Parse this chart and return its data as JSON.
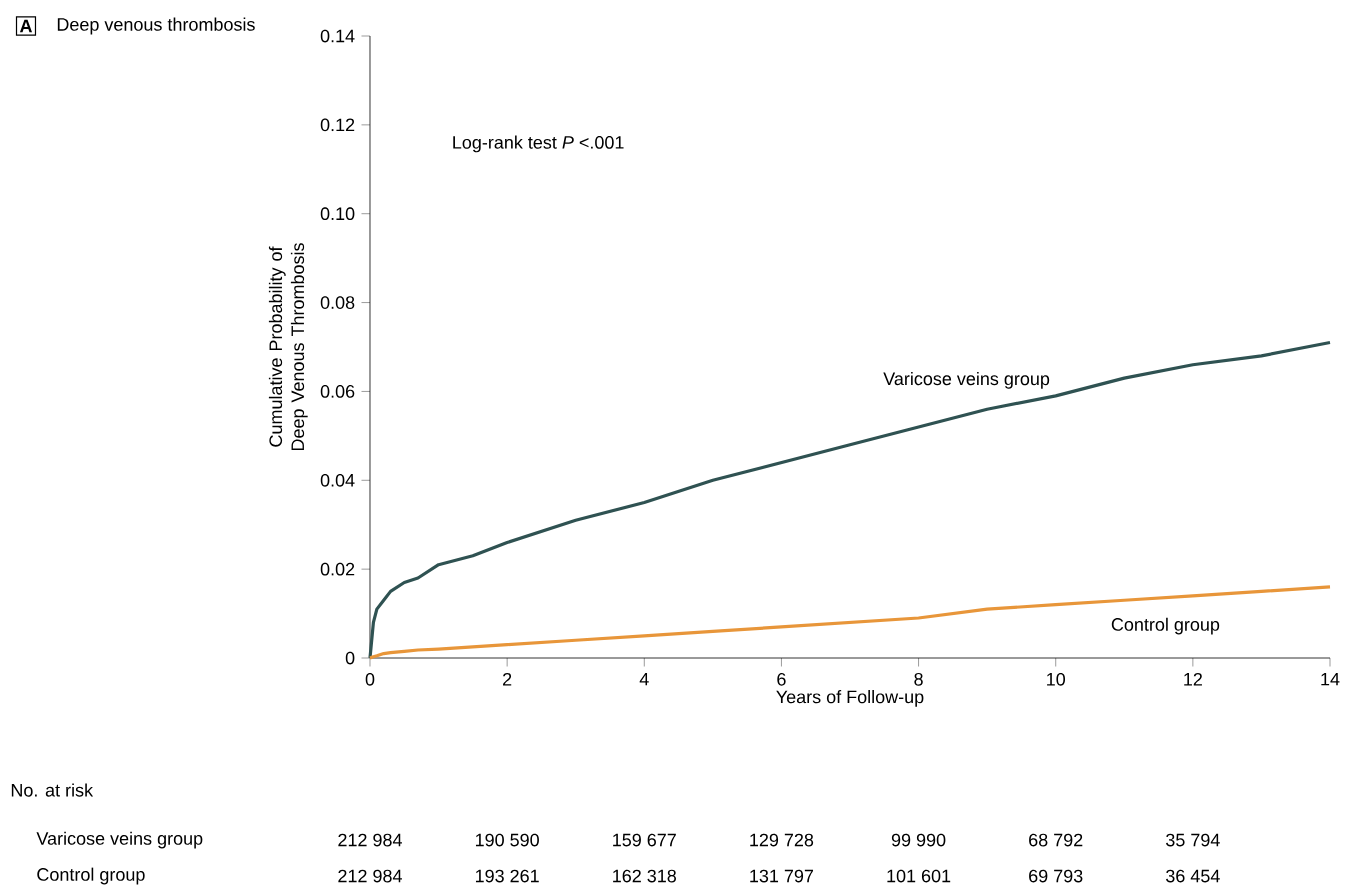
{
  "chart_data": {
    "type": "line",
    "title": "Deep venous thrombosis",
    "xlabel": "Years of Follow-up",
    "ylabel": "Cumulative Probability of Deep Venous Thrombosis",
    "xlim": [
      0,
      14
    ],
    "ylim": [
      0,
      0.14
    ],
    "xticks": [
      0,
      2,
      4,
      6,
      8,
      10,
      12,
      14
    ],
    "yticks": [
      0,
      0.02,
      0.04,
      0.06,
      0.08,
      {
        "value": 0.1,
        "label": "0.10"
      },
      0.12,
      0.14
    ],
    "x": [
      0,
      0.05,
      0.1,
      0.2,
      0.3,
      0.5,
      0.7,
      1,
      1.5,
      2,
      3,
      4,
      5,
      6,
      7,
      8,
      9,
      10,
      11,
      12,
      13,
      14
    ],
    "series": [
      {
        "name": "Varicose veins group",
        "color": "#2f5252",
        "values": [
          0,
          0.008,
          0.011,
          0.013,
          0.015,
          0.017,
          0.018,
          0.021,
          0.023,
          0.026,
          0.031,
          0.035,
          0.04,
          0.044,
          0.048,
          0.052,
          0.056,
          0.059,
          0.063,
          0.066,
          0.068,
          0.071
        ]
      },
      {
        "name": "Control group",
        "color": "#e8963a",
        "values": [
          0,
          0.0003,
          0.0005,
          0.001,
          0.0012,
          0.0015,
          0.0018,
          0.002,
          0.0025,
          0.003,
          0.004,
          0.005,
          0.006,
          0.007,
          0.008,
          0.009,
          0.011,
          0.012,
          0.013,
          0.014,
          0.015,
          0.016
        ]
      }
    ],
    "marker": "none",
    "line_style": "solid",
    "annotations": [
      "A",
      "Log-rank test *P* <.001",
      "No. at risk",
      "Varicose veins group",
      "212 984",
      "190 590",
      "159 677",
      "129 728",
      "99 990",
      "68 792",
      "35 794",
      "Control group",
      "212 984",
      "193 261",
      "162 318",
      "131 797",
      "101 601",
      "69 793",
      "36 454"
    ]
  }
}
